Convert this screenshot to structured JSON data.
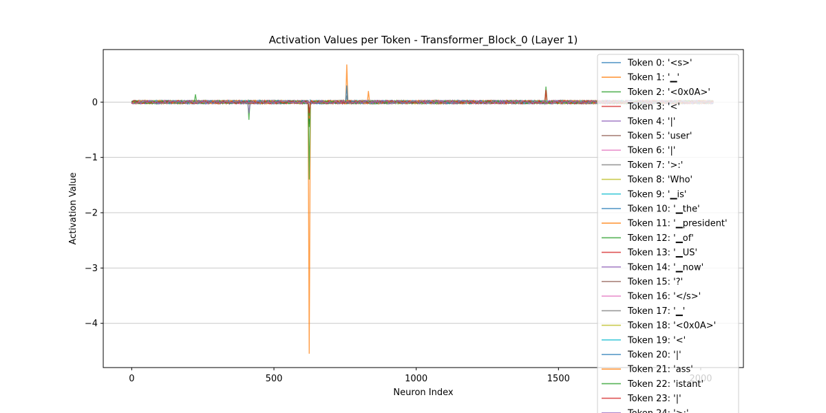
{
  "chart_data": {
    "type": "line",
    "title": "Activation Values per Token - Transformer_Block_0 (Layer 1)",
    "xlabel": "Neuron Index",
    "ylabel": "Activation Value",
    "xlim": [
      -100,
      2150
    ],
    "ylim": [
      -4.8,
      0.95
    ],
    "xticks": [
      0,
      500,
      1000,
      1500,
      2000
    ],
    "xtick_labels": [
      "0",
      "500",
      "1000",
      "1500",
      "2000"
    ],
    "yticks": [
      0,
      -1,
      -2,
      -3,
      -4
    ],
    "ytick_labels": [
      "0",
      "−1",
      "−2",
      "−3",
      "−4"
    ],
    "grid": "horizontal",
    "legend_position": "top-right",
    "x_range": [
      0,
      2047
    ],
    "baseline_noise": 0.03,
    "series": [
      {
        "name": "Token 0: '<s>'",
        "color": "#1f77b4",
        "spikes": []
      },
      {
        "name": "Token 1: '▁'",
        "color": "#ff7f0e",
        "spikes": [
          [
            622,
            -4.55
          ],
          [
            757,
            0.68
          ],
          [
            833,
            0.2
          ],
          [
            1457,
            0.2
          ]
        ]
      },
      {
        "name": "Token 2: '<0x0A>'",
        "color": "#2ca02c",
        "spikes": [
          [
            413,
            -0.32
          ],
          [
            622,
            -1.4
          ],
          [
            224,
            0.14
          ],
          [
            1457,
            0.28
          ]
        ]
      },
      {
        "name": "Token 3: '<'",
        "color": "#d62728",
        "spikes": [
          [
            622,
            -0.35
          ],
          [
            1457,
            0.22
          ]
        ]
      },
      {
        "name": "Token 4: '|'",
        "color": "#9467bd",
        "spikes": [
          [
            622,
            -0.3
          ],
          [
            413,
            -0.2
          ]
        ]
      },
      {
        "name": "Token 5: 'user'",
        "color": "#8c564b",
        "spikes": [
          [
            622,
            -0.4
          ]
        ]
      },
      {
        "name": "Token 6: '|'",
        "color": "#e377c2",
        "spikes": [
          [
            622,
            -0.28
          ]
        ]
      },
      {
        "name": "Token 7: '>:'",
        "color": "#7f7f7f",
        "spikes": [
          [
            622,
            -0.3
          ],
          [
            757,
            0.12
          ]
        ]
      },
      {
        "name": "Token 8: 'Who'",
        "color": "#bcbd22",
        "spikes": [
          [
            622,
            -0.25
          ]
        ]
      },
      {
        "name": "Token 9: '▁is'",
        "color": "#17becf",
        "spikes": [
          [
            622,
            -0.22
          ]
        ]
      },
      {
        "name": "Token 10: '▁the'",
        "color": "#1f77b4",
        "spikes": [
          [
            622,
            -0.35
          ],
          [
            757,
            0.3
          ]
        ]
      },
      {
        "name": "Token 11: '▁president'",
        "color": "#ff7f0e",
        "spikes": [
          [
            622,
            -0.3
          ]
        ]
      },
      {
        "name": "Token 12: '▁of'",
        "color": "#2ca02c",
        "spikes": [
          [
            622,
            -0.45
          ]
        ]
      },
      {
        "name": "Token 13: '▁US'",
        "color": "#d62728",
        "spikes": [
          [
            622,
            -0.3
          ]
        ]
      },
      {
        "name": "Token 14: '▁now'",
        "color": "#9467bd",
        "spikes": [
          [
            622,
            -0.25
          ]
        ]
      },
      {
        "name": "Token 15: '?'",
        "color": "#8c564b",
        "spikes": [
          [
            622,
            -0.3
          ]
        ]
      },
      {
        "name": "Token 16: '</s>'",
        "color": "#e377c2",
        "spikes": [
          [
            622,
            -0.2
          ]
        ]
      },
      {
        "name": "Token 17: '▁'",
        "color": "#7f7f7f",
        "spikes": [
          [
            622,
            -0.3
          ]
        ]
      },
      {
        "name": "Token 18: '<0x0A>'",
        "color": "#bcbd22",
        "spikes": [
          [
            622,
            -0.25
          ]
        ]
      },
      {
        "name": "Token 19: '<'",
        "color": "#17becf",
        "spikes": [
          [
            622,
            -0.2
          ]
        ]
      },
      {
        "name": "Token 20: '|'",
        "color": "#1f77b4",
        "spikes": [
          [
            622,
            -0.22
          ]
        ]
      },
      {
        "name": "Token 21: 'ass'",
        "color": "#ff7f0e",
        "spikes": [
          [
            622,
            -0.3
          ]
        ]
      },
      {
        "name": "Token 22: 'istant'",
        "color": "#2ca02c",
        "spikes": [
          [
            622,
            -0.25
          ]
        ]
      },
      {
        "name": "Token 23: '|'",
        "color": "#d62728",
        "spikes": [
          [
            622,
            -0.2
          ]
        ]
      },
      {
        "name": "Token 24: '>:'",
        "color": "#9467bd",
        "spikes": []
      }
    ]
  }
}
